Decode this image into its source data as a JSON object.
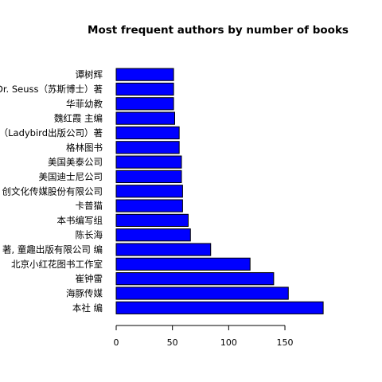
{
  "chart_data": {
    "type": "bar",
    "orientation": "horizontal",
    "title": "Most frequent authors by number of books",
    "xlabel": "",
    "ylabel": "",
    "xlim": [
      0,
      185
    ],
    "x_ticks": [
      0,
      50,
      100,
      150
    ],
    "grid": false,
    "bar_color": "#0000ff",
    "categories": [
      "本社 编",
      "海豚传媒",
      "崔钟雷",
      "北京小红花图书工作室",
      "著, 童趣出版有限公司 编",
      "陈长海",
      "本书编写组",
      "卡普猫",
      "创文化传媒股份有限公司",
      "美国迪士尼公司",
      "美国美泰公司",
      "格林图书",
      "s（Ladybird出版公司）著",
      "魏红霞 主编",
      "华菲幼教",
      "Dr. Seuss（苏斯博士）著",
      "谭树辉"
    ],
    "values": [
      184,
      153,
      140,
      119,
      84,
      66,
      64,
      59,
      59,
      58,
      58,
      56,
      56,
      52,
      51,
      51,
      51
    ]
  }
}
